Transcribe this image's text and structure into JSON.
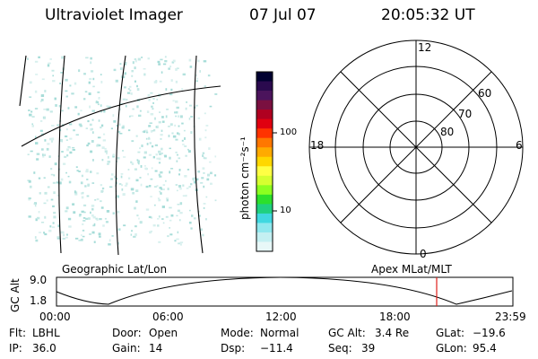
{
  "header": {
    "instrument": "Ultraviolet Imager",
    "date": "07 Jul 07",
    "time": "20:05:32 UT"
  },
  "colorbar": {
    "title": "photon cm⁻²s⁻¹",
    "ticks": [
      "100",
      "10"
    ],
    "colors": [
      "#000030",
      "#2a0a4e",
      "#4b145c",
      "#7a1040",
      "#b00020",
      "#e00010",
      "#ff3300",
      "#ff7700",
      "#ffaa00",
      "#ffd700",
      "#ffff44",
      "#d6ff30",
      "#8cff20",
      "#2ce02c",
      "#20d080",
      "#40d8e0",
      "#90e8ee",
      "#c4f0f2",
      "#e8f8f8"
    ]
  },
  "polar": {
    "mlt_labels": {
      "top": "12",
      "left": "18",
      "right": "6",
      "bottom": "0"
    },
    "lat_labels": [
      "60",
      "70",
      "80"
    ]
  },
  "altitude_plot": {
    "left_label": "Geographic Lat/Lon",
    "right_label": "Apex MLat/MLT",
    "axis_title": "GC Alt",
    "y_ticks": [
      "9.0",
      "1.8"
    ],
    "x_ticks": [
      "00:00",
      "06:00",
      "12:00",
      "18:00",
      "23:59"
    ],
    "marker_color": "#e0201c"
  },
  "status": {
    "row1": [
      {
        "label": "Flt:",
        "value": "LBHL"
      },
      {
        "label": "Door:",
        "value": "Open"
      },
      {
        "label": "Mode:",
        "value": "Normal"
      },
      {
        "label": "GC Alt:",
        "value": "3.4 Re"
      },
      {
        "label": "GLat:",
        "value": "−19.6"
      }
    ],
    "row2": [
      {
        "label": "IP:",
        "value": "36.0"
      },
      {
        "label": "Gain:",
        "value": "14"
      },
      {
        "label": "Dsp:",
        "value": "−11.4"
      },
      {
        "label": "Seq:",
        "value": "39"
      },
      {
        "label": "GLon:",
        "value": "95.4"
      }
    ]
  }
}
